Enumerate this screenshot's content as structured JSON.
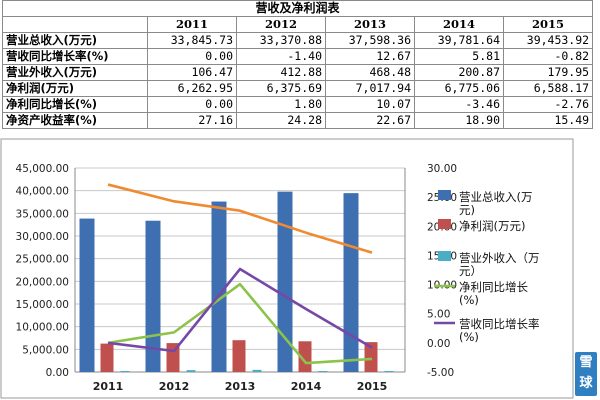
{
  "table": {
    "title": "营收及净利润表",
    "years": [
      "2011",
      "2012",
      "2013",
      "2014",
      "2015"
    ],
    "rows": [
      {
        "label": "营业总收入(万元)",
        "values": [
          "33,845.73",
          "33,370.88",
          "37,598.36",
          "39,781.64",
          "39,453.92"
        ]
      },
      {
        "label": "营收同比增长率(%)",
        "values": [
          "0.00",
          "-1.40",
          "12.67",
          "5.81",
          "-0.82"
        ]
      },
      {
        "label": "营业外收入(万元)",
        "values": [
          "106.47",
          "412.88",
          "468.48",
          "200.87",
          "179.95"
        ]
      },
      {
        "label": "净利润(万元)",
        "values": [
          "6,262.95",
          "6,375.69",
          "7,017.94",
          "6,775.06",
          "6,588.17"
        ]
      },
      {
        "label": "净利同比增长(%)",
        "values": [
          "0.00",
          "1.80",
          "10.07",
          "-3.46",
          "-2.76"
        ]
      },
      {
        "label": "净资产收益率(%)",
        "values": [
          "27.16",
          "24.28",
          "22.67",
          "18.90",
          "15.49"
        ]
      }
    ]
  },
  "chart_data": {
    "type": "bar",
    "categories": [
      "2011",
      "2012",
      "2013",
      "2014",
      "2015"
    ],
    "ylim": [
      0,
      45000
    ],
    "y2lim": [
      -5,
      30
    ],
    "left_ticks": [
      "0.00",
      "5,000.00",
      "10,000.00",
      "15,000.00",
      "20,000.00",
      "25,000.00",
      "30,000.00",
      "35,000.00",
      "40,000.00",
      "45,000.00"
    ],
    "right_ticks": [
      "-5.00",
      "0.00",
      "5.00",
      "10.00",
      "15.00",
      "20.00",
      "25.00",
      "30.00"
    ],
    "grid": true,
    "legend_position": "right",
    "series": [
      {
        "name": "营业总收入(万元)",
        "type": "bar",
        "axis": "left",
        "color": "#3e6fb0",
        "values": [
          33845.73,
          33370.88,
          37598.36,
          39781.64,
          39453.92
        ]
      },
      {
        "name": "净利润(万元)",
        "type": "bar",
        "axis": "left",
        "color": "#c0504d",
        "values": [
          6262.95,
          6375.69,
          7017.94,
          6775.06,
          6588.17
        ]
      },
      {
        "name": "营业外收入（万元）",
        "type": "bar",
        "axis": "left",
        "color": "#4bacc6",
        "values": [
          106.47,
          412.88,
          468.48,
          200.87,
          179.95
        ]
      },
      {
        "name": "净利同比增长(%)",
        "type": "line",
        "axis": "right",
        "color": "#8cc34a",
        "values": [
          0.0,
          1.8,
          10.07,
          -3.46,
          -2.76
        ]
      },
      {
        "name": "营收同比增长率(%)",
        "type": "line",
        "axis": "right",
        "color": "#7548a8",
        "values": [
          0.0,
          -1.4,
          12.67,
          5.81,
          -0.82
        ]
      },
      {
        "name": "",
        "type": "line",
        "axis": "right",
        "color": "#f08a30",
        "values": [
          27.16,
          24.28,
          22.67,
          18.9,
          15.49
        ]
      }
    ]
  },
  "watermark": {
    "line1": "雪",
    "line2": "球"
  }
}
